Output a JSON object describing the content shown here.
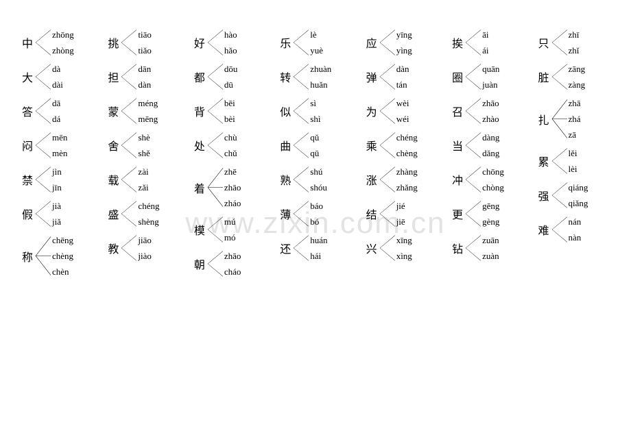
{
  "watermark": "www.zixin.com.cn",
  "columns": [
    [
      {
        "hanzi": "中",
        "readings": [
          "zhōng",
          "zhòng"
        ]
      },
      {
        "hanzi": "大",
        "readings": [
          "dà",
          "dài"
        ]
      },
      {
        "hanzi": "答",
        "readings": [
          "dā",
          "dá"
        ]
      },
      {
        "hanzi": "闷",
        "readings": [
          "mēn",
          "mèn"
        ]
      },
      {
        "hanzi": "禁",
        "readings": [
          "jìn",
          "jīn"
        ]
      },
      {
        "hanzi": "假",
        "readings": [
          "jià",
          "jiǎ"
        ]
      },
      {
        "hanzi": "称",
        "readings": [
          "chēng",
          "chèng",
          "chèn"
        ]
      }
    ],
    [
      {
        "hanzi": "挑",
        "readings": [
          "tiāo",
          "tiǎo"
        ]
      },
      {
        "hanzi": "担",
        "readings": [
          "dān",
          "dàn"
        ]
      },
      {
        "hanzi": "蒙",
        "readings": [
          "méng",
          "mēng"
        ]
      },
      {
        "hanzi": "舍",
        "readings": [
          "shè",
          "shě"
        ]
      },
      {
        "hanzi": "载",
        "readings": [
          "zài",
          "zǎi"
        ]
      },
      {
        "hanzi": "盛",
        "readings": [
          "chéng",
          "shèng"
        ]
      },
      {
        "hanzi": "教",
        "readings": [
          "jiāo",
          "jiào"
        ]
      }
    ],
    [
      {
        "hanzi": "好",
        "readings": [
          "hào",
          "hǎo"
        ]
      },
      {
        "hanzi": "都",
        "readings": [
          "dōu",
          "dū"
        ]
      },
      {
        "hanzi": "背",
        "readings": [
          "bēi",
          "bèi"
        ]
      },
      {
        "hanzi": "处",
        "readings": [
          "chù",
          "chǔ"
        ]
      },
      {
        "hanzi": "着",
        "readings": [
          "zhē",
          "zhāo",
          "zháo"
        ]
      },
      {
        "hanzi": "模",
        "readings": [
          "mú",
          "mó"
        ]
      },
      {
        "hanzi": "朝",
        "readings": [
          "zhāo",
          "cháo"
        ]
      }
    ],
    [
      {
        "hanzi": "乐",
        "readings": [
          "lè",
          "yuè"
        ]
      },
      {
        "hanzi": "转",
        "readings": [
          "zhuàn",
          "huǎn"
        ]
      },
      {
        "hanzi": "似",
        "readings": [
          "sì",
          "shì"
        ]
      },
      {
        "hanzi": "曲",
        "readings": [
          "qǔ",
          "qū"
        ]
      },
      {
        "hanzi": "熟",
        "readings": [
          "shú",
          "shóu"
        ]
      },
      {
        "hanzi": "薄",
        "readings": [
          "báo",
          "bó"
        ]
      },
      {
        "hanzi": "还",
        "readings": [
          "huán",
          "hái"
        ]
      }
    ],
    [
      {
        "hanzi": "应",
        "readings": [
          "yīng",
          "yìng"
        ]
      },
      {
        "hanzi": "弹",
        "readings": [
          "dàn",
          "tán"
        ]
      },
      {
        "hanzi": "为",
        "readings": [
          "wèi",
          "wéi"
        ]
      },
      {
        "hanzi": "乘",
        "readings": [
          "chéng",
          "chèng"
        ]
      },
      {
        "hanzi": "涨",
        "readings": [
          "zhàng",
          "zhǎng"
        ]
      },
      {
        "hanzi": "结",
        "readings": [
          "jié",
          "jiē"
        ]
      },
      {
        "hanzi": "兴",
        "readings": [
          "xīng",
          "xìng"
        ]
      }
    ],
    [
      {
        "hanzi": "挨",
        "readings": [
          "āi",
          "ái"
        ]
      },
      {
        "hanzi": "圈",
        "readings": [
          "quān",
          "juàn"
        ]
      },
      {
        "hanzi": "召",
        "readings": [
          "zhāo",
          "zhào"
        ]
      },
      {
        "hanzi": "当",
        "readings": [
          "dàng",
          "dǎng"
        ]
      },
      {
        "hanzi": "冲",
        "readings": [
          "chōng",
          "chòng"
        ]
      },
      {
        "hanzi": "更",
        "readings": [
          "gēng",
          "gèng"
        ]
      },
      {
        "hanzi": "钻",
        "readings": [
          "zuān",
          "zuàn"
        ]
      }
    ],
    [
      {
        "hanzi": "只",
        "readings": [
          "zhī",
          "zhǐ"
        ]
      },
      {
        "hanzi": "脏",
        "readings": [
          "zāng",
          "zàng"
        ]
      },
      {
        "hanzi": "扎",
        "readings": [
          "zhā",
          "zhá",
          "zā"
        ]
      },
      {
        "hanzi": "累",
        "readings": [
          "lěi",
          "lèi"
        ]
      },
      {
        "hanzi": "强",
        "readings": [
          "qiáng",
          "qiǎng"
        ]
      },
      {
        "hanzi": "难",
        "readings": [
          "nán",
          "nàn"
        ]
      }
    ]
  ]
}
